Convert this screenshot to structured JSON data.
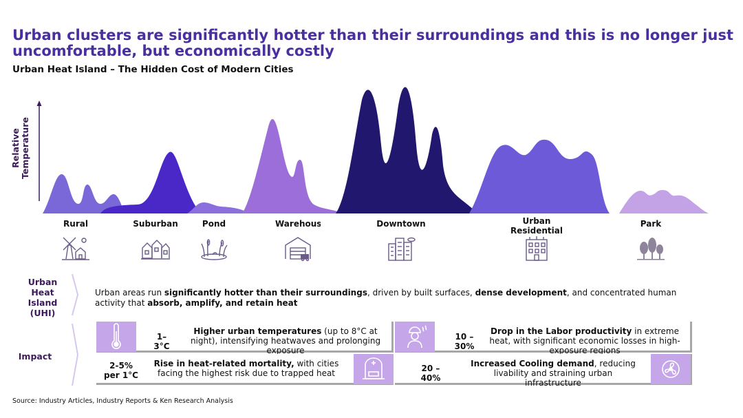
{
  "headline": "Urban clusters are significantly hotter than their surroundings and this is no longer just uncomfortable, but economically costly",
  "subtitle": "Urban Heat Island – The Hidden Cost of Modern Cities",
  "y_axis_label": "Relative Temperature",
  "zones": [
    {
      "label": "Rural",
      "icon": "windmill-farm-icon",
      "color": "#7b68d8"
    },
    {
      "label": "Suburban",
      "icon": "houses-icon",
      "color": "#4a28c7"
    },
    {
      "label": "Pond",
      "icon": "pond-reeds-icon",
      "color": "#8b6fdc"
    },
    {
      "label": "Warehouse",
      "icon": "warehouse-icon",
      "color": "#9b6ed9"
    },
    {
      "label": "Downtown",
      "icon": "skyscrapers-icon",
      "color": "#22176f"
    },
    {
      "label": "Urban Residential",
      "icon": "apartment-building-icon",
      "color": "#6c5ad8"
    },
    {
      "label": "Park",
      "icon": "park-trees-icon",
      "color": "#c3a3e6"
    }
  ],
  "uhi": {
    "label": "Urban Heat Island (UHI)",
    "text_1": "Urban areas run ",
    "bold_1": "significantly hotter than their surroundings",
    "text_2": ", driven by built surfaces, ",
    "bold_2": "dense development",
    "text_3": ", and concentrated human activity that ",
    "bold_3": "absorb, amplify, and retain heat"
  },
  "impact": {
    "label": "Impact",
    "items": [
      {
        "value": "1– 3°C",
        "bold": "Higher urban temperatures",
        "text": " (up to 8°C at night), intensifying heatwaves and prolonging exposure",
        "icon": "thermometer-icon"
      },
      {
        "value": "10 – 30%",
        "bold": "Drop in the Labor productivity",
        "text": " in extreme heat, with significant economic losses in high-exposure regions",
        "icon": "hot-worker-icon"
      },
      {
        "value": "2-5% per 1°C",
        "bold": "Rise in heat-related mortality,",
        "text": " with cities facing the highest risk due to trapped heat",
        "icon": "hospital-bed-icon"
      },
      {
        "value": "20 – 40%",
        "bold": "Increased Cooling demand",
        "text": ", reducing livability and straining urban infrastructure",
        "icon": "fan-icon"
      }
    ]
  },
  "source": "Source: Industry Articles, Industry Reports & Ken Research Analysis"
}
